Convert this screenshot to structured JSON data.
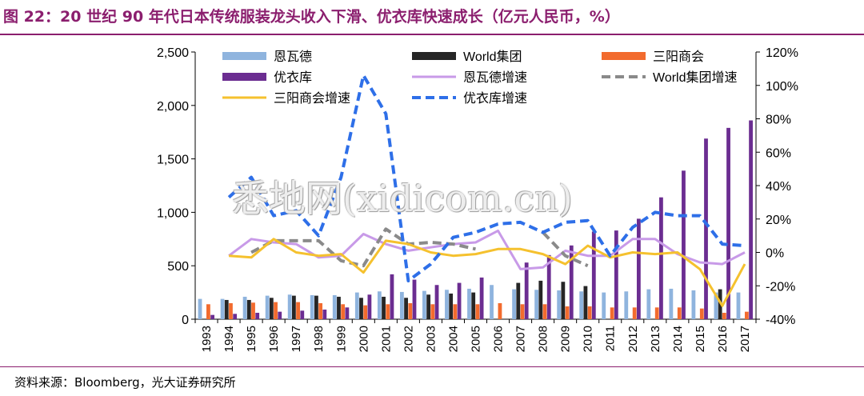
{
  "header": {
    "title": "图 22：20 世纪 90 年代日本传统服装龙头收入下滑、优衣库快速成长（亿元人民币，%）"
  },
  "footer": {
    "source": "资料来源：Bloomberg，光大证券研究所"
  },
  "watermark_text": "悉地网(xidicom.cn)",
  "chart_data": {
    "type": "bar",
    "categories": [
      "1993",
      "1994",
      "1995",
      "1996",
      "1997",
      "1998",
      "1999",
      "2000",
      "2001",
      "2002",
      "2003",
      "2004",
      "2005",
      "2006",
      "2007",
      "2008",
      "2009",
      "2010",
      "2011",
      "2012",
      "2013",
      "2014",
      "2015",
      "2016",
      "2017"
    ],
    "y_left": {
      "ylim": [
        0,
        2500
      ],
      "ticks": [
        "0",
        "500",
        "1,000",
        "1,500",
        "2,000",
        "2,500"
      ]
    },
    "y_right": {
      "ylim": [
        -40,
        120
      ],
      "ticks": [
        "-40%",
        "-20%",
        "0%",
        "20%",
        "40%",
        "60%",
        "80%",
        "100%",
        "120%"
      ]
    },
    "bar_series": [
      {
        "name": "恩瓦德",
        "color": "#8FB4DE",
        "values": [
          190,
          190,
          210,
          220,
          230,
          225,
          225,
          250,
          260,
          255,
          265,
          275,
          285,
          320,
          280,
          275,
          270,
          260,
          250,
          260,
          280,
          285,
          270,
          250,
          250
        ]
      },
      {
        "name": "World集团",
        "color": "#262626",
        "values": [
          null,
          180,
          180,
          200,
          220,
          220,
          210,
          200,
          210,
          200,
          230,
          240,
          250,
          null,
          340,
          360,
          350,
          310,
          null,
          null,
          null,
          null,
          null,
          280,
          null
        ]
      },
      {
        "name": "三阳商会",
        "color": "#F26B2E",
        "values": [
          140,
          150,
          155,
          160,
          160,
          150,
          140,
          130,
          140,
          150,
          140,
          140,
          140,
          150,
          140,
          140,
          120,
          120,
          110,
          110,
          110,
          110,
          100,
          60,
          70
        ]
      },
      {
        "name": "优衣库",
        "color": "#6B2D91",
        "values": [
          40,
          50,
          60,
          70,
          80,
          90,
          110,
          230,
          420,
          370,
          320,
          340,
          390,
          null,
          530,
          600,
          690,
          820,
          830,
          940,
          1140,
          1390,
          1690,
          1790,
          1860
        ]
      }
    ],
    "line_series": [
      {
        "name": "恩瓦德增速",
        "color": "#C89AE8",
        "dash": "solid",
        "values": [
          null,
          -2,
          8,
          6,
          5,
          -3,
          -2,
          11,
          5,
          1,
          3,
          5,
          6,
          13,
          -10,
          -9,
          1,
          -2,
          -2,
          8,
          8,
          -1,
          -6,
          -7,
          0
        ]
      },
      {
        "name": "World集团增速",
        "color": "#8A8A8A",
        "dash": "dashed",
        "values": [
          null,
          null,
          0,
          7,
          7,
          7,
          -5,
          -8,
          14,
          5,
          6,
          5,
          2,
          null,
          null,
          12,
          -2,
          -8,
          null,
          null,
          null,
          null,
          null,
          null,
          null
        ]
      },
      {
        "name": "三阳商会增速",
        "color": "#F5C12E",
        "dash": "solid",
        "values": [
          null,
          -2,
          -3,
          8,
          0,
          -2,
          -1,
          -12,
          7,
          5,
          0,
          -2,
          -1,
          2,
          2,
          -1,
          -7,
          4,
          -3,
          0,
          -1,
          0,
          -10,
          -32,
          -7
        ]
      },
      {
        "name": "优衣库增速",
        "color": "#2E6FE8",
        "dash": "dashed",
        "values": [
          null,
          33,
          45,
          22,
          25,
          10,
          45,
          106,
          83,
          -17,
          -7,
          9,
          12,
          17,
          18,
          12,
          18,
          19,
          -2,
          15,
          24,
          22,
          22,
          5,
          4
        ]
      }
    ],
    "legend": [
      {
        "label": "恩瓦德",
        "kind": "bar",
        "color": "#8FB4DE"
      },
      {
        "label": "World集团",
        "kind": "bar",
        "color": "#262626"
      },
      {
        "label": "三阳商会",
        "kind": "bar",
        "color": "#F26B2E"
      },
      {
        "label": "优衣库",
        "kind": "bar",
        "color": "#6B2D91"
      },
      {
        "label": "恩瓦德增速",
        "kind": "line",
        "color": "#C89AE8",
        "dash": "solid"
      },
      {
        "label": "World集团增速",
        "kind": "line",
        "color": "#8A8A8A",
        "dash": "dashed"
      },
      {
        "label": "三阳商会增速",
        "kind": "line",
        "color": "#F5C12E",
        "dash": "solid"
      },
      {
        "label": "优衣库增速",
        "kind": "line",
        "color": "#2E6FE8",
        "dash": "dashed"
      }
    ],
    "legend_position": "top-inside",
    "grid": false
  }
}
